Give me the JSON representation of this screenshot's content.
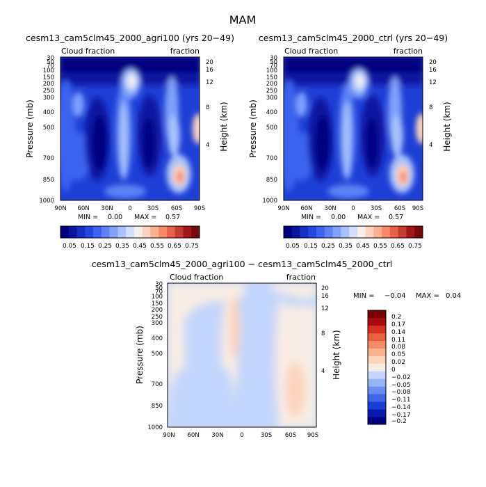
{
  "page": {
    "title": "MAM"
  },
  "palettes": {
    "field": [
      "#00007f",
      "#0a16a0",
      "#1530c0",
      "#2347de",
      "#3b63ef",
      "#5a82f5",
      "#7fa1f9",
      "#a6c1fb",
      "#cfdffd",
      "#f6eee8",
      "#fcd3bd",
      "#fbb090",
      "#f5896a",
      "#e6604c",
      "#c73a2f",
      "#a01818",
      "#7a0a0a"
    ],
    "diff": [
      "#00007f",
      "#0a1ab0",
      "#1b3fd6",
      "#3f66ec",
      "#6a8ff3",
      "#98b4f7",
      "#c3d6fb",
      "#f8ede4",
      "#fdd3bb",
      "#fcb291",
      "#f78b66",
      "#ea603f",
      "#d53121",
      "#a80d0d",
      "#7a0000"
    ]
  },
  "chart_data": [
    {
      "type": "heatmap",
      "title": "cesm13_cam5clm45_2000_agri100 (yrs 20−49)",
      "left_label": "Cloud fraction",
      "right_label": "fraction",
      "ylabel": "Pressure (mb)",
      "ylabel_right": "Height (km)",
      "xticks": [
        "90N",
        "60N",
        "30N",
        "0",
        "30S",
        "60S",
        "90S"
      ],
      "yticks": [
        "30",
        "50",
        "70",
        "100",
        "150",
        "200",
        "250",
        "300",
        "400",
        "500",
        "700",
        "850",
        "1000"
      ],
      "yticks_right": [
        "20",
        "16",
        "12",
        "8",
        "4"
      ],
      "stats": {
        "min_label": "MIN =",
        "min": "0.00",
        "max_label": "MAX =",
        "max": "0.57"
      },
      "colorbar": {
        "orientation": "horizontal",
        "labels": [
          "0.05",
          "0.15",
          "0.25",
          "0.35",
          "0.45",
          "0.55",
          "0.65",
          "0.75"
        ]
      },
      "scale": "field"
    },
    {
      "type": "heatmap",
      "title": "cesm13_cam5clm45_2000_ctrl (yrs 20−49)",
      "left_label": "Cloud fraction",
      "right_label": "fraction",
      "ylabel": "Pressure (mb)",
      "ylabel_right": "Height (km)",
      "xticks": [
        "90N",
        "60N",
        "30N",
        "0",
        "30S",
        "60S",
        "90S"
      ],
      "yticks": [
        "30",
        "50",
        "70",
        "100",
        "150",
        "200",
        "250",
        "300",
        "400",
        "500",
        "700",
        "850",
        "1000"
      ],
      "yticks_right": [
        "20",
        "16",
        "12",
        "8",
        "4"
      ],
      "stats": {
        "min_label": "MIN =",
        "min": "0.00",
        "max_label": "MAX =",
        "max": "0.57"
      },
      "colorbar": {
        "orientation": "horizontal",
        "labels": [
          "0.05",
          "0.15",
          "0.25",
          "0.35",
          "0.45",
          "0.55",
          "0.65",
          "0.75"
        ]
      },
      "scale": "field"
    },
    {
      "type": "heatmap",
      "title": "cesm13_cam5clm45_2000_agri100 − cesm13_cam5clm45_2000_ctrl",
      "left_label": "Cloud fraction",
      "right_label": "fraction",
      "ylabel": "Pressure (mb)",
      "ylabel_right": "Height (km)",
      "xticks": [
        "90N",
        "60N",
        "30N",
        "0",
        "30S",
        "60S",
        "90S"
      ],
      "yticks": [
        "30",
        "50",
        "70",
        "100",
        "150",
        "200",
        "250",
        "300",
        "400",
        "500",
        "700",
        "850",
        "1000"
      ],
      "yticks_right": [
        "20",
        "16",
        "12",
        "8",
        "4"
      ],
      "stats": {
        "min_label": "MIN =",
        "min": "−0.04",
        "max_label": "MAX =",
        "max": "0.04"
      },
      "colorbar": {
        "orientation": "vertical",
        "labels": [
          "0.2",
          "0.17",
          "0.14",
          "0.11",
          "0.08",
          "0.05",
          "0.02",
          "0",
          "−0.02",
          "−0.05",
          "−0.08",
          "−0.11",
          "−0.14",
          "−0.17",
          "−0.2"
        ]
      },
      "scale": "diff"
    }
  ]
}
